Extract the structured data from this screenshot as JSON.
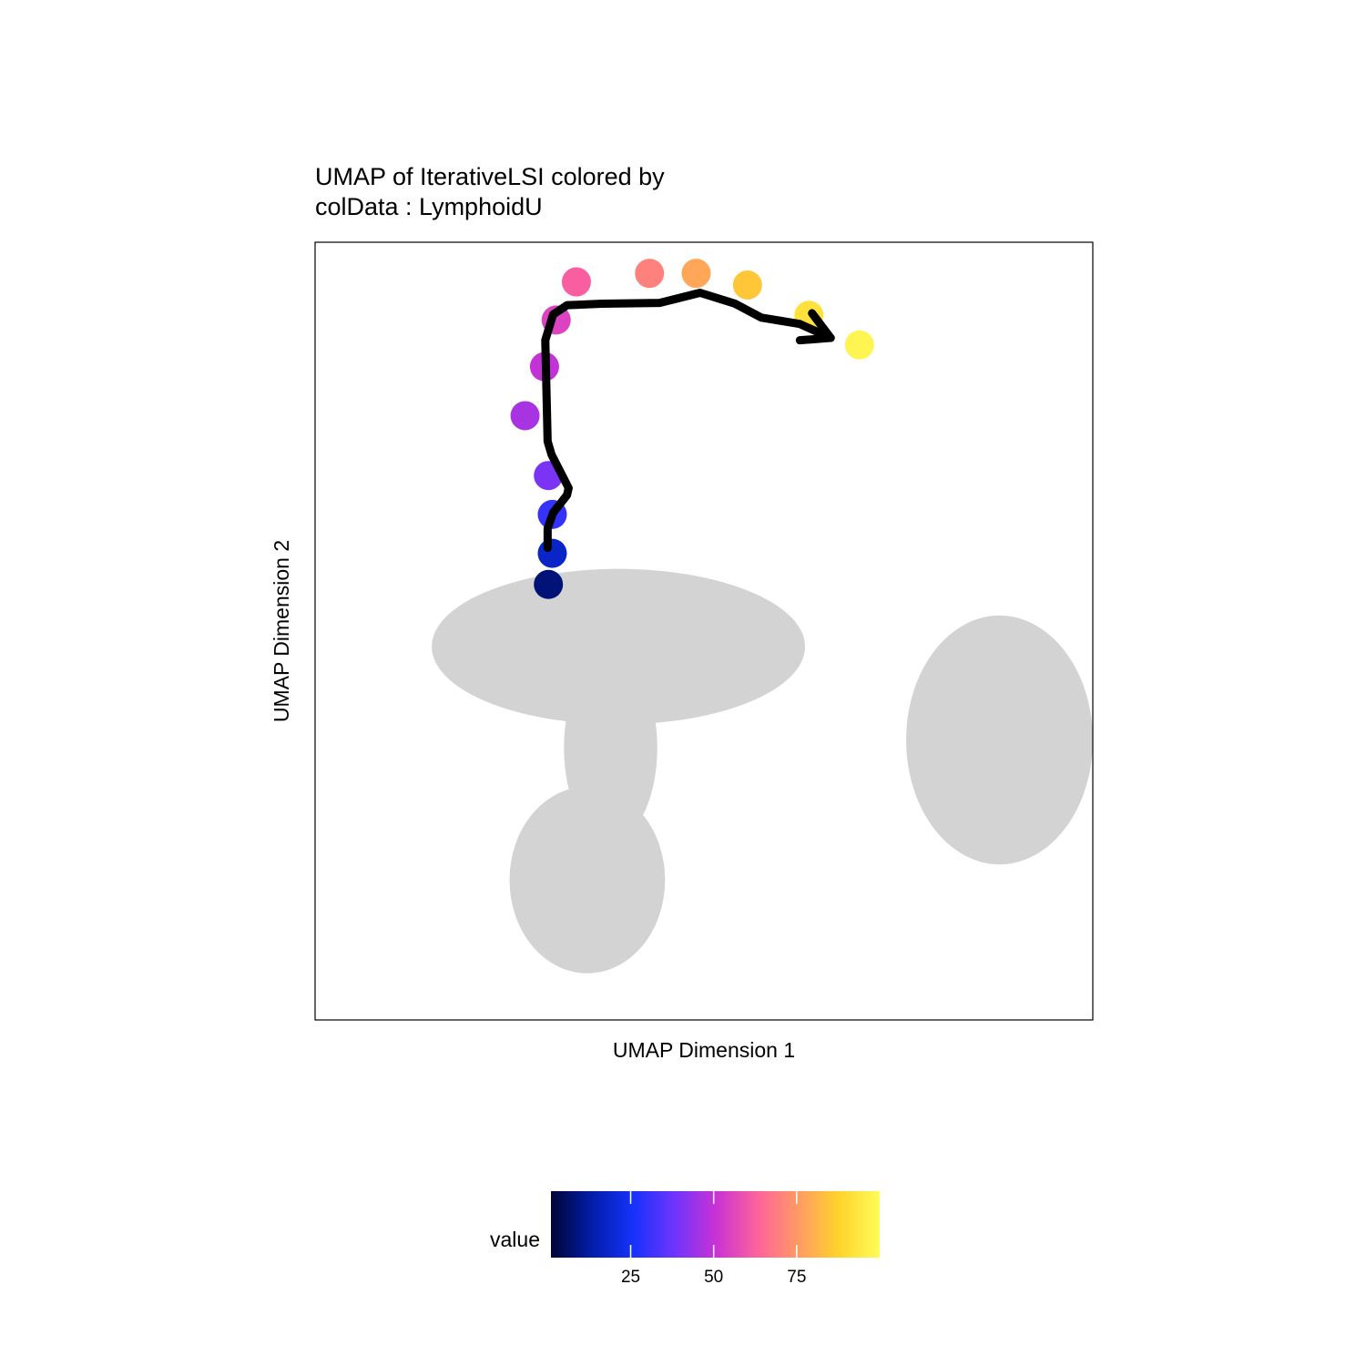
{
  "chart_data": {
    "type": "scatter",
    "title_lines": [
      "UMAP of IterativeLSI  colored by",
      "colData :  LymphoidU"
    ],
    "xlabel": "UMAP Dimension 1",
    "ylabel": "UMAP Dimension 2",
    "axis_ticks_shown": false,
    "grid": false,
    "xlim": [
      0,
      100
    ],
    "ylim": [
      0,
      100
    ],
    "background_color": "#D3D3D3",
    "background_clusters": [
      {
        "cx": 39,
        "cy": 48,
        "rx": 24,
        "ry": 10
      },
      {
        "cx": 38,
        "cy": 35,
        "rx": 6,
        "ry": 12
      },
      {
        "cx": 35,
        "cy": 18,
        "rx": 10,
        "ry": 12
      },
      {
        "cx": 88,
        "cy": 36,
        "rx": 12,
        "ry": 16
      }
    ],
    "trajectory_points": [
      {
        "x": 31.0,
        "y": 90.0,
        "value": 55
      },
      {
        "x": 33.6,
        "y": 94.9,
        "value": 62
      },
      {
        "x": 43.0,
        "y": 96.0,
        "value": 70
      },
      {
        "x": 49.0,
        "y": 96.0,
        "value": 78
      },
      {
        "x": 55.6,
        "y": 94.5,
        "value": 85
      },
      {
        "x": 63.5,
        "y": 90.6,
        "value": 92
      },
      {
        "x": 70.0,
        "y": 86.8,
        "value": 98
      },
      {
        "x": 29.5,
        "y": 84.0,
        "value": 50
      },
      {
        "x": 27.0,
        "y": 77.7,
        "value": 46
      },
      {
        "x": 30.0,
        "y": 70.0,
        "value": 40
      },
      {
        "x": 30.5,
        "y": 65.0,
        "value": 30
      },
      {
        "x": 30.5,
        "y": 60.0,
        "value": 18
      },
      {
        "x": 30.0,
        "y": 56.0,
        "value": 8
      }
    ],
    "trajectory_line": {
      "color": "#000000",
      "x": [
        29.9,
        29.9,
        30.6,
        32.4,
        32.6,
        30.4,
        29.9,
        29.6,
        30.6,
        32.4,
        36.9,
        44.3,
        49.5,
        54.0,
        57.4,
        62.3,
        66.3
      ],
      "y": [
        60.7,
        63.2,
        65.2,
        67.5,
        68.4,
        72.7,
        74.4,
        87.4,
        90.7,
        91.9,
        92.1,
        92.2,
        93.5,
        92.1,
        90.3,
        89.5,
        87.7
      ]
    },
    "colorbar": {
      "title": "value",
      "range": [
        1,
        100
      ],
      "ticks": [
        25,
        50,
        75
      ],
      "colors": [
        "#000436",
        "#021EA9",
        "#1632FB",
        "#6E34FC",
        "#C732D5",
        "#FD619D",
        "#FF9965",
        "#FFD32B",
        "#FFFC5A"
      ]
    }
  }
}
